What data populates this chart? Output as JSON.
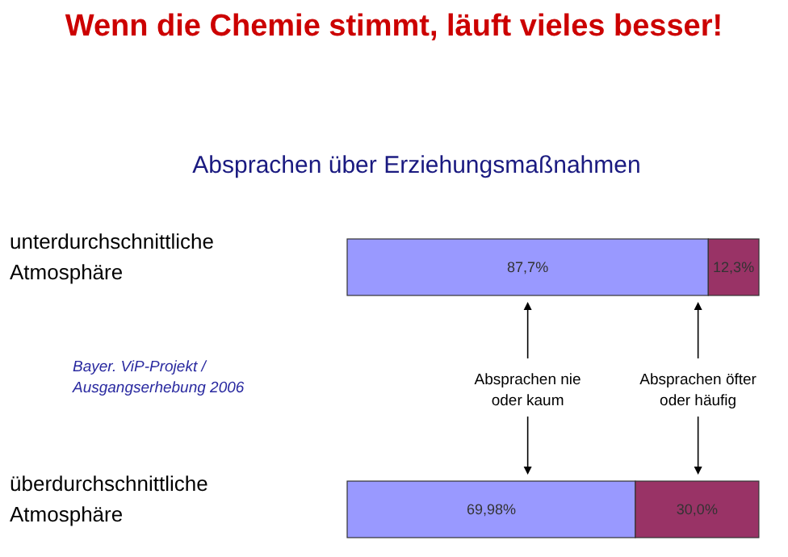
{
  "chart_data": {
    "type": "bar",
    "orientation": "horizontal",
    "stacked": true,
    "title": "Wenn die Chemie stimmt, läuft vieles besser!",
    "subtitle": "Absprachen über Erziehungsmaßnahmen",
    "categories": [
      "unterdurchschnittliche Atmosphäre",
      "überdurchschnittliche Atmosphäre"
    ],
    "series": [
      {
        "name": "Absprachen nie oder kaum",
        "color": "#9999ff",
        "values": [
          87.7,
          69.98
        ],
        "value_labels": [
          "87,7%",
          "69,98%"
        ]
      },
      {
        "name": "Absprachen öfter oder häufig",
        "color": "#993366",
        "values": [
          12.3,
          30.0
        ],
        "value_labels": [
          "12,3%",
          "30,0%"
        ]
      }
    ],
    "annotations": [
      "Bayer. ViP-Projekt / Ausgangserhebung 2006"
    ]
  }
}
